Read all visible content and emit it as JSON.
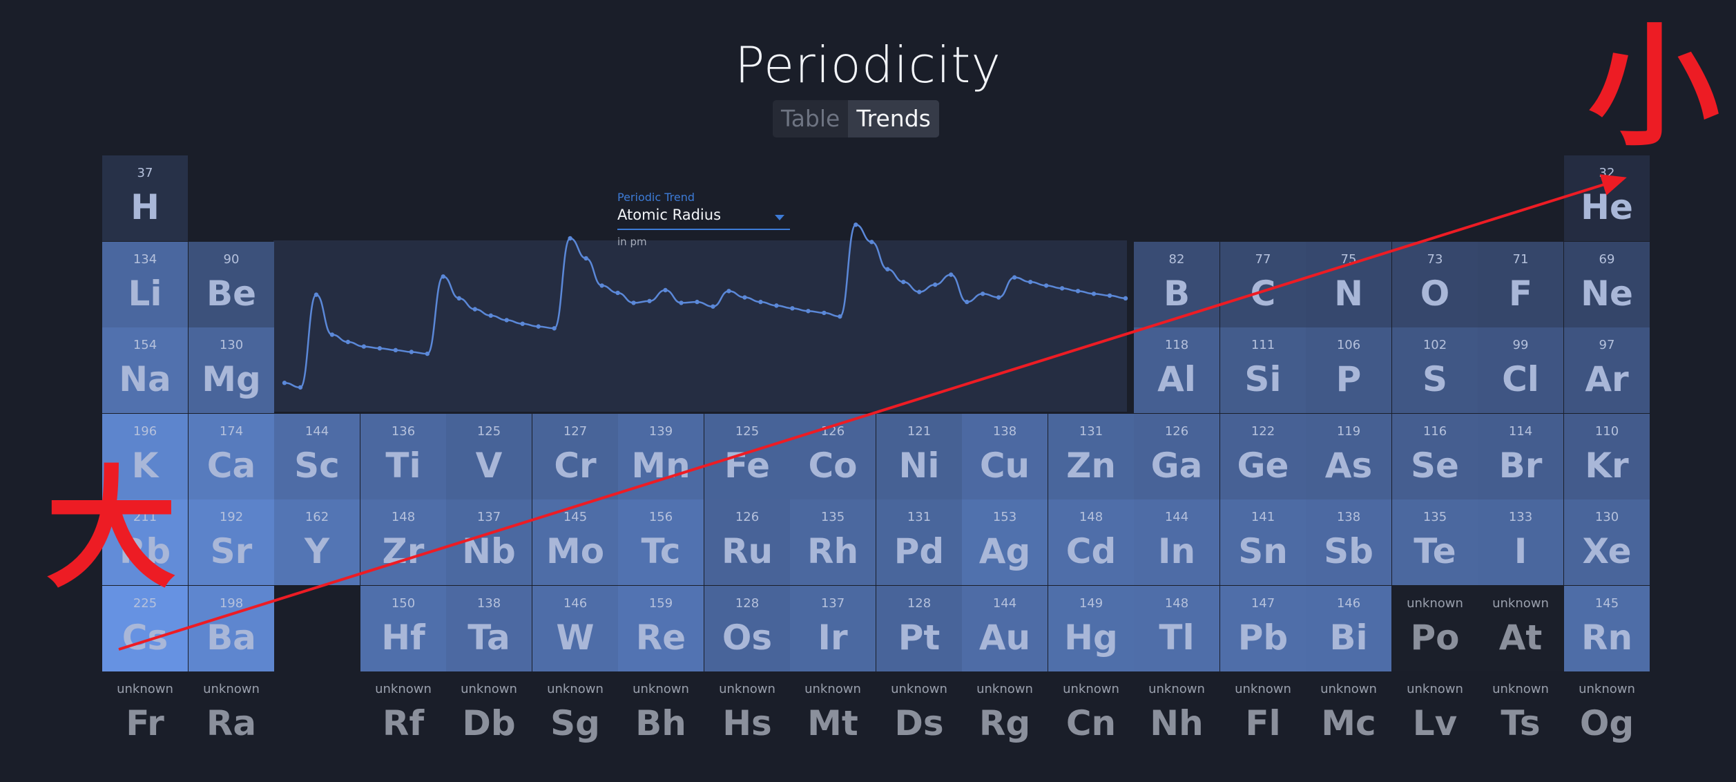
{
  "app": {
    "title": "Periodicity"
  },
  "toggle": {
    "options": [
      "Table",
      "Trends"
    ],
    "active": "Trends"
  },
  "trend": {
    "label": "Periodic Trend",
    "selected": "Atomic Radius",
    "unit": "in pm",
    "line_color": "#5b88d8"
  },
  "annotation": {
    "large_label": "大",
    "small_label": "小",
    "arrow_color": "#ed1c24"
  },
  "elements": [
    {
      "s": "H",
      "v": "37",
      "r": 1,
      "c": 1
    },
    {
      "s": "He",
      "v": "32",
      "r": 1,
      "c": 18
    },
    {
      "s": "Li",
      "v": "134",
      "r": 2,
      "c": 1
    },
    {
      "s": "Be",
      "v": "90",
      "r": 2,
      "c": 2
    },
    {
      "s": "B",
      "v": "82",
      "r": 2,
      "c": 13
    },
    {
      "s": "C",
      "v": "77",
      "r": 2,
      "c": 14
    },
    {
      "s": "N",
      "v": "75",
      "r": 2,
      "c": 15
    },
    {
      "s": "O",
      "v": "73",
      "r": 2,
      "c": 16
    },
    {
      "s": "F",
      "v": "71",
      "r": 2,
      "c": 17
    },
    {
      "s": "Ne",
      "v": "69",
      "r": 2,
      "c": 18
    },
    {
      "s": "Na",
      "v": "154",
      "r": 3,
      "c": 1
    },
    {
      "s": "Mg",
      "v": "130",
      "r": 3,
      "c": 2
    },
    {
      "s": "Al",
      "v": "118",
      "r": 3,
      "c": 13
    },
    {
      "s": "Si",
      "v": "111",
      "r": 3,
      "c": 14
    },
    {
      "s": "P",
      "v": "106",
      "r": 3,
      "c": 15
    },
    {
      "s": "S",
      "v": "102",
      "r": 3,
      "c": 16
    },
    {
      "s": "Cl",
      "v": "99",
      "r": 3,
      "c": 17
    },
    {
      "s": "Ar",
      "v": "97",
      "r": 3,
      "c": 18
    },
    {
      "s": "K",
      "v": "196",
      "r": 4,
      "c": 1
    },
    {
      "s": "Ca",
      "v": "174",
      "r": 4,
      "c": 2
    },
    {
      "s": "Sc",
      "v": "144",
      "r": 4,
      "c": 3
    },
    {
      "s": "Ti",
      "v": "136",
      "r": 4,
      "c": 4
    },
    {
      "s": "V",
      "v": "125",
      "r": 4,
      "c": 5
    },
    {
      "s": "Cr",
      "v": "127",
      "r": 4,
      "c": 6
    },
    {
      "s": "Mn",
      "v": "139",
      "r": 4,
      "c": 7
    },
    {
      "s": "Fe",
      "v": "125",
      "r": 4,
      "c": 8
    },
    {
      "s": "Co",
      "v": "126",
      "r": 4,
      "c": 9
    },
    {
      "s": "Ni",
      "v": "121",
      "r": 4,
      "c": 10
    },
    {
      "s": "Cu",
      "v": "138",
      "r": 4,
      "c": 11
    },
    {
      "s": "Zn",
      "v": "131",
      "r": 4,
      "c": 12
    },
    {
      "s": "Ga",
      "v": "126",
      "r": 4,
      "c": 13
    },
    {
      "s": "Ge",
      "v": "122",
      "r": 4,
      "c": 14
    },
    {
      "s": "As",
      "v": "119",
      "r": 4,
      "c": 15
    },
    {
      "s": "Se",
      "v": "116",
      "r": 4,
      "c": 16
    },
    {
      "s": "Br",
      "v": "114",
      "r": 4,
      "c": 17
    },
    {
      "s": "Kr",
      "v": "110",
      "r": 4,
      "c": 18
    },
    {
      "s": "Rb",
      "v": "211",
      "r": 5,
      "c": 1
    },
    {
      "s": "Sr",
      "v": "192",
      "r": 5,
      "c": 2
    },
    {
      "s": "Y",
      "v": "162",
      "r": 5,
      "c": 3
    },
    {
      "s": "Zr",
      "v": "148",
      "r": 5,
      "c": 4
    },
    {
      "s": "Nb",
      "v": "137",
      "r": 5,
      "c": 5
    },
    {
      "s": "Mo",
      "v": "145",
      "r": 5,
      "c": 6
    },
    {
      "s": "Tc",
      "v": "156",
      "r": 5,
      "c": 7
    },
    {
      "s": "Ru",
      "v": "126",
      "r": 5,
      "c": 8
    },
    {
      "s": "Rh",
      "v": "135",
      "r": 5,
      "c": 9
    },
    {
      "s": "Pd",
      "v": "131",
      "r": 5,
      "c": 10
    },
    {
      "s": "Ag",
      "v": "153",
      "r": 5,
      "c": 11
    },
    {
      "s": "Cd",
      "v": "148",
      "r": 5,
      "c": 12
    },
    {
      "s": "In",
      "v": "144",
      "r": 5,
      "c": 13
    },
    {
      "s": "Sn",
      "v": "141",
      "r": 5,
      "c": 14
    },
    {
      "s": "Sb",
      "v": "138",
      "r": 5,
      "c": 15
    },
    {
      "s": "Te",
      "v": "135",
      "r": 5,
      "c": 16
    },
    {
      "s": "I",
      "v": "133",
      "r": 5,
      "c": 17
    },
    {
      "s": "Xe",
      "v": "130",
      "r": 5,
      "c": 18
    },
    {
      "s": "Cs",
      "v": "225",
      "r": 6,
      "c": 1
    },
    {
      "s": "Ba",
      "v": "198",
      "r": 6,
      "c": 2
    },
    {
      "s": "Hf",
      "v": "150",
      "r": 6,
      "c": 4
    },
    {
      "s": "Ta",
      "v": "138",
      "r": 6,
      "c": 5
    },
    {
      "s": "W",
      "v": "146",
      "r": 6,
      "c": 6
    },
    {
      "s": "Re",
      "v": "159",
      "r": 6,
      "c": 7
    },
    {
      "s": "Os",
      "v": "128",
      "r": 6,
      "c": 8
    },
    {
      "s": "Ir",
      "v": "137",
      "r": 6,
      "c": 9
    },
    {
      "s": "Pt",
      "v": "128",
      "r": 6,
      "c": 10
    },
    {
      "s": "Au",
      "v": "144",
      "r": 6,
      "c": 11
    },
    {
      "s": "Hg",
      "v": "149",
      "r": 6,
      "c": 12
    },
    {
      "s": "Tl",
      "v": "148",
      "r": 6,
      "c": 13
    },
    {
      "s": "Pb",
      "v": "147",
      "r": 6,
      "c": 14
    },
    {
      "s": "Bi",
      "v": "146",
      "r": 6,
      "c": 15
    },
    {
      "s": "Po",
      "v": "unknown",
      "r": 6,
      "c": 16
    },
    {
      "s": "At",
      "v": "unknown",
      "r": 6,
      "c": 17
    },
    {
      "s": "Rn",
      "v": "145",
      "r": 6,
      "c": 18
    },
    {
      "s": "Fr",
      "v": "unknown",
      "r": 7,
      "c": 1
    },
    {
      "s": "Ra",
      "v": "unknown",
      "r": 7,
      "c": 2
    },
    {
      "s": "Rf",
      "v": "unknown",
      "r": 7,
      "c": 4
    },
    {
      "s": "Db",
      "v": "unknown",
      "r": 7,
      "c": 5
    },
    {
      "s": "Sg",
      "v": "unknown",
      "r": 7,
      "c": 6
    },
    {
      "s": "Bh",
      "v": "unknown",
      "r": 7,
      "c": 7
    },
    {
      "s": "Hs",
      "v": "unknown",
      "r": 7,
      "c": 8
    },
    {
      "s": "Mt",
      "v": "unknown",
      "r": 7,
      "c": 9
    },
    {
      "s": "Ds",
      "v": "unknown",
      "r": 7,
      "c": 10
    },
    {
      "s": "Rg",
      "v": "unknown",
      "r": 7,
      "c": 11
    },
    {
      "s": "Cn",
      "v": "unknown",
      "r": 7,
      "c": 12
    },
    {
      "s": "Nh",
      "v": "unknown",
      "r": 7,
      "c": 13
    },
    {
      "s": "Fl",
      "v": "unknown",
      "r": 7,
      "c": 14
    },
    {
      "s": "Mc",
      "v": "unknown",
      "r": 7,
      "c": 15
    },
    {
      "s": "Lv",
      "v": "unknown",
      "r": 7,
      "c": 16
    },
    {
      "s": "Ts",
      "v": "unknown",
      "r": 7,
      "c": 17
    },
    {
      "s": "Og",
      "v": "unknown",
      "r": 7,
      "c": 18
    }
  ]
}
